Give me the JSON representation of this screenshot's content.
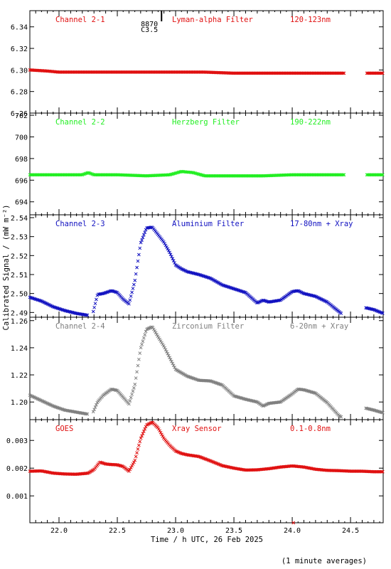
{
  "figure": {
    "ylabel": "Calibrated Signal / (mW m⁻²)",
    "xlabel": "Time / h UTC, 26 Feb 2025",
    "footnote": "(1 minute averages)",
    "event_label_1": "8870",
    "event_label_2": "C3.5",
    "event_time": 22.8
  },
  "xaxis": {
    "range": [
      21.75,
      24.78
    ],
    "ticks": [
      22.0,
      22.5,
      23.0,
      23.5,
      24.0,
      24.5
    ],
    "ticklabels": [
      "22.0",
      "22.5",
      "23.0",
      "23.5",
      "24.0",
      "24.5"
    ]
  },
  "chart_data": [
    {
      "type": "scatter",
      "name": "Channel 2-1",
      "filter": "Lyman-alpha Filter",
      "band": "120-123nm",
      "color": "#e01010",
      "ylim": [
        6.26,
        6.355
      ],
      "yticks": [
        6.26,
        6.28,
        6.3,
        6.32,
        6.34
      ],
      "yticklabels": [
        "6.26",
        "6.28",
        "6.30",
        "6.32",
        "6.34"
      ],
      "gaps": [
        [
          24.45,
          24.64
        ]
      ],
      "x": [
        21.75,
        21.9,
        22.0,
        22.25,
        22.5,
        22.75,
        23.0,
        23.25,
        23.5,
        23.75,
        24.0,
        24.25,
        24.45,
        24.64,
        24.78
      ],
      "y": [
        6.3,
        6.299,
        6.298,
        6.298,
        6.298,
        6.298,
        6.298,
        6.298,
        6.297,
        6.297,
        6.297,
        6.297,
        6.297,
        6.297,
        6.297
      ]
    },
    {
      "type": "scatter",
      "name": "Channel 2-2",
      "filter": "Herzberg Filter",
      "band": "190-222nm",
      "color": "#22ee22",
      "ylim": [
        692.8,
        702.2
      ],
      "yticks": [
        694,
        696,
        698,
        700,
        702
      ],
      "yticklabels": [
        "694",
        "696",
        "698",
        "700",
        "702"
      ],
      "gaps": [
        [
          24.45,
          24.64
        ]
      ],
      "x": [
        21.75,
        22.0,
        22.2,
        22.25,
        22.3,
        22.5,
        22.75,
        22.95,
        23.05,
        23.15,
        23.25,
        23.5,
        23.75,
        24.0,
        24.25,
        24.45,
        24.64,
        24.78
      ],
      "y": [
        696.5,
        696.5,
        696.5,
        696.7,
        696.5,
        696.5,
        696.4,
        696.5,
        696.8,
        696.7,
        696.4,
        696.4,
        696.4,
        696.5,
        696.5,
        696.5,
        696.5,
        696.5
      ]
    },
    {
      "type": "scatter",
      "name": "Channel 2-3",
      "filter": "Aluminium Filter",
      "band": "17-80nm + Xray",
      "color": "#1010c0",
      "ylim": [
        2.4875,
        2.5415
      ],
      "yticks": [
        2.49,
        2.5,
        2.51,
        2.52,
        2.53,
        2.54
      ],
      "yticklabels": [
        "2.49",
        "2.50",
        "2.51",
        "2.52",
        "2.53",
        "2.54"
      ],
      "gaps": [
        [
          22.25,
          22.29
        ],
        [
          24.42,
          24.63
        ]
      ],
      "x": [
        21.75,
        21.85,
        21.95,
        22.05,
        22.15,
        22.25,
        22.29,
        22.33,
        22.38,
        22.45,
        22.5,
        22.55,
        22.6,
        22.65,
        22.7,
        22.75,
        22.8,
        22.85,
        22.9,
        22.95,
        23.0,
        23.05,
        23.1,
        23.2,
        23.3,
        23.4,
        23.5,
        23.6,
        23.7,
        23.75,
        23.8,
        23.9,
        24.0,
        24.05,
        24.1,
        24.2,
        24.3,
        24.4,
        24.42,
        24.63,
        24.7,
        24.78
      ],
      "y": [
        2.498,
        2.496,
        2.493,
        2.491,
        2.4895,
        2.4885,
        2.4895,
        2.4995,
        2.5,
        2.5015,
        2.5005,
        2.497,
        2.4945,
        2.5065,
        2.5265,
        2.5345,
        2.535,
        2.531,
        2.527,
        2.5215,
        2.515,
        2.513,
        2.5115,
        2.51,
        2.508,
        2.5045,
        2.5025,
        2.5005,
        2.495,
        2.4965,
        2.4955,
        2.4965,
        2.501,
        2.5015,
        2.5,
        2.4985,
        2.4955,
        2.4905,
        2.4895,
        2.4925,
        2.4915,
        2.4895
      ]
    },
    {
      "type": "scatter",
      "name": "Channel 2-4",
      "filter": "Zirconium Filter",
      "band": "6-20nm + Xray",
      "color": "#7f7f7f",
      "ylim": [
        1.187,
        1.2625
      ],
      "yticks": [
        1.2,
        1.22,
        1.24,
        1.26
      ],
      "yticklabels": [
        "1.20",
        "1.22",
        "1.24",
        "1.26"
      ],
      "gaps": [
        [
          22.25,
          22.29
        ],
        [
          24.42,
          24.63
        ]
      ],
      "x": [
        21.75,
        21.85,
        21.95,
        22.05,
        22.15,
        22.25,
        22.29,
        22.33,
        22.38,
        22.45,
        22.5,
        22.55,
        22.6,
        22.65,
        22.7,
        22.75,
        22.8,
        22.85,
        22.9,
        22.95,
        23.0,
        23.05,
        23.1,
        23.2,
        23.3,
        23.4,
        23.5,
        23.6,
        23.7,
        23.75,
        23.8,
        23.9,
        24.0,
        24.05,
        24.1,
        24.2,
        24.3,
        24.4,
        24.42,
        24.63,
        24.7,
        24.78
      ],
      "y": [
        1.205,
        1.201,
        1.197,
        1.194,
        1.1925,
        1.191,
        1.192,
        1.2,
        1.205,
        1.2095,
        1.2085,
        1.2035,
        1.1985,
        1.2125,
        1.2395,
        1.2535,
        1.2555,
        1.248,
        1.241,
        1.2325,
        1.224,
        1.2215,
        1.219,
        1.216,
        1.2155,
        1.2125,
        1.2045,
        1.202,
        1.2,
        1.197,
        1.199,
        1.2,
        1.206,
        1.2095,
        1.209,
        1.2065,
        1.1995,
        1.19,
        1.189,
        1.1955,
        1.194,
        1.192
      ]
    },
    {
      "type": "scatter",
      "name": "GOES",
      "filter": "Xray Sensor",
      "band": "0.1-0.8nm",
      "color": "#e01010",
      "ylim": [
        3e-05,
        0.00375
      ],
      "yticks": [
        0.001,
        0.002,
        0.003
      ],
      "yticklabels": [
        "0.001",
        "0.002",
        "0.003"
      ],
      "gaps": [],
      "x": [
        21.75,
        21.85,
        21.95,
        22.05,
        22.15,
        22.25,
        22.3,
        22.35,
        22.4,
        22.45,
        22.5,
        22.55,
        22.6,
        22.65,
        22.7,
        22.75,
        22.8,
        22.85,
        22.9,
        22.95,
        23.0,
        23.05,
        23.1,
        23.2,
        23.3,
        23.4,
        23.5,
        23.6,
        23.7,
        23.8,
        23.9,
        24.0,
        24.05,
        24.1,
        24.2,
        24.3,
        24.4,
        24.5,
        24.6,
        24.7,
        24.78
      ],
      "y": [
        0.00189,
        0.0019,
        0.00182,
        0.00179,
        0.00178,
        0.00182,
        0.00195,
        0.00222,
        0.00215,
        0.00213,
        0.00212,
        0.00206,
        0.00189,
        0.00227,
        0.00306,
        0.00355,
        0.00366,
        0.00345,
        0.00307,
        0.00282,
        0.00262,
        0.00253,
        0.00248,
        0.00242,
        0.00226,
        0.00209,
        0.002,
        0.00193,
        0.00194,
        0.00198,
        0.00204,
        0.00208,
        0.00206,
        0.00204,
        0.00196,
        0.00192,
        0.00191,
        0.00189,
        0.00189,
        0.00187,
        0.00187
      ]
    }
  ]
}
